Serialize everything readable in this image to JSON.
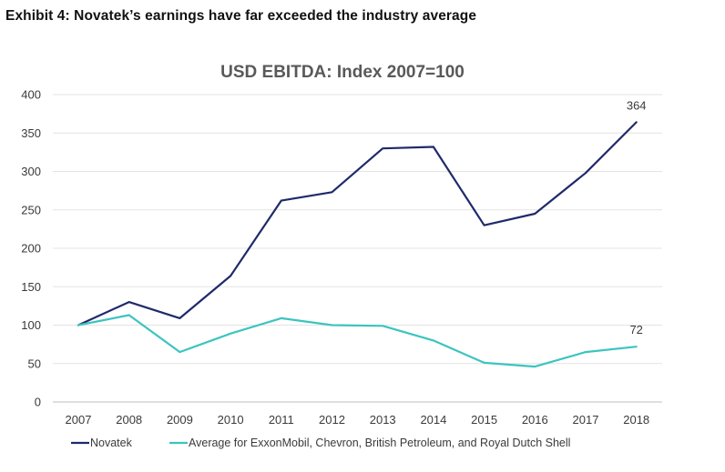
{
  "exhibit": {
    "title": "Exhibit 4: Novatek’s earnings have far exceeded the industry average"
  },
  "chart_data": {
    "type": "line",
    "title": "USD EBITDA: Index 2007=100",
    "xlabel": "",
    "ylabel": "",
    "categories": [
      "2007",
      "2008",
      "2009",
      "2010",
      "2011",
      "2012",
      "2013",
      "2014",
      "2015",
      "2016",
      "2017",
      "2018"
    ],
    "ylim": [
      0,
      400
    ],
    "yticks": [
      "0",
      "50",
      "100",
      "150",
      "200",
      "250",
      "300",
      "350",
      "400"
    ],
    "grid": true,
    "legend": "bottom",
    "series": [
      {
        "name": "Novatek",
        "color": "#1f2a6b",
        "values": [
          100,
          130,
          109,
          164,
          262,
          273,
          330,
          332,
          230,
          245,
          298,
          364
        ],
        "end_label": "364"
      },
      {
        "name": "Average for ExxonMobil, Chevron, British Petroleum, and Royal Dutch Shell",
        "color": "#3cc4c0",
        "values": [
          100,
          113,
          65,
          89,
          109,
          100,
          99,
          80,
          51,
          46,
          65,
          72
        ],
        "end_label": "72"
      }
    ]
  }
}
